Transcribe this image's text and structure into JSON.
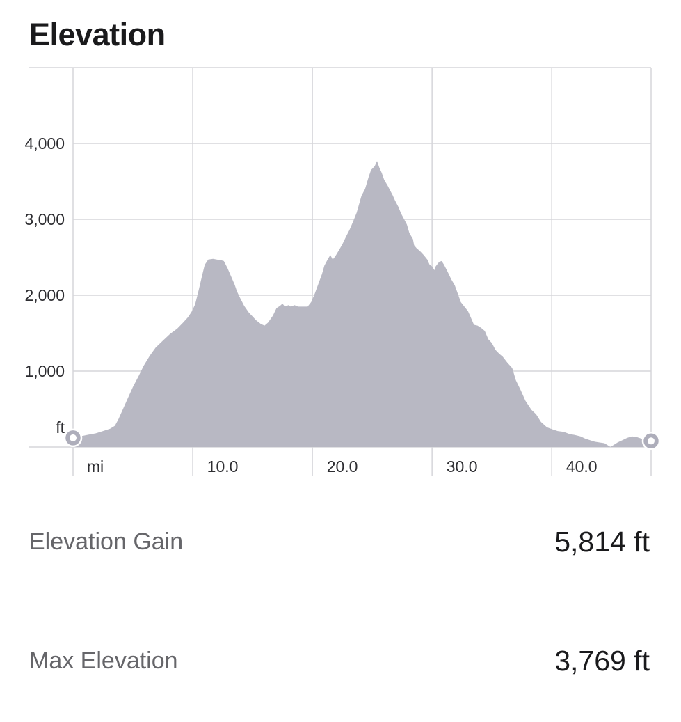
{
  "title": "Elevation",
  "chart_data": {
    "type": "area",
    "title": "Elevation",
    "grid": true,
    "fill_color": "#b8b8c3",
    "marker_color": "#aeaebb",
    "x_axis": {
      "unit_label": "mi",
      "range": [
        0,
        48.3
      ],
      "ticks": [
        {
          "value": 10,
          "label": "10.0"
        },
        {
          "value": 20,
          "label": "20.0"
        },
        {
          "value": 30,
          "label": "30.0"
        },
        {
          "value": 40,
          "label": "40.0"
        }
      ]
    },
    "y_axis": {
      "unit_label": "ft",
      "range": [
        0,
        5000
      ],
      "ticks": [
        {
          "value": 1000,
          "label": "1,000"
        },
        {
          "value": 2000,
          "label": "2,000"
        },
        {
          "value": 3000,
          "label": "3,000"
        },
        {
          "value": 4000,
          "label": "4,000"
        }
      ]
    },
    "series": [
      {
        "name": "elevation-profile",
        "points_mi_ft": [
          [
            0,
            120
          ],
          [
            0.6,
            140
          ],
          [
            1.2,
            160
          ],
          [
            1.9,
            180
          ],
          [
            2.5,
            210
          ],
          [
            3.1,
            240
          ],
          [
            3.5,
            280
          ],
          [
            3.8,
            370
          ],
          [
            4.2,
            510
          ],
          [
            4.6,
            650
          ],
          [
            5,
            790
          ],
          [
            5.5,
            940
          ],
          [
            5.9,
            1070
          ],
          [
            6.4,
            1200
          ],
          [
            6.9,
            1310
          ],
          [
            7.5,
            1400
          ],
          [
            8.1,
            1490
          ],
          [
            8.7,
            1560
          ],
          [
            9.2,
            1640
          ],
          [
            9.6,
            1710
          ],
          [
            9.9,
            1780
          ],
          [
            10.2,
            1880
          ],
          [
            10.5,
            2070
          ],
          [
            10.8,
            2270
          ],
          [
            11,
            2400
          ],
          [
            11.3,
            2470
          ],
          [
            11.7,
            2480
          ],
          [
            12,
            2470
          ],
          [
            12.4,
            2460
          ],
          [
            12.6,
            2450
          ],
          [
            12.9,
            2360
          ],
          [
            13.2,
            2250
          ],
          [
            13.5,
            2140
          ],
          [
            13.7,
            2050
          ],
          [
            14,
            1950
          ],
          [
            14.3,
            1860
          ],
          [
            14.7,
            1770
          ],
          [
            15,
            1720
          ],
          [
            15.3,
            1670
          ],
          [
            15.7,
            1620
          ],
          [
            16,
            1600
          ],
          [
            16.3,
            1640
          ],
          [
            16.7,
            1730
          ],
          [
            17,
            1830
          ],
          [
            17.3,
            1860
          ],
          [
            17.5,
            1890
          ],
          [
            17.7,
            1850
          ],
          [
            18,
            1870
          ],
          [
            18.2,
            1850
          ],
          [
            18.5,
            1870
          ],
          [
            18.8,
            1850
          ],
          [
            19.2,
            1850
          ],
          [
            19.6,
            1850
          ],
          [
            19.9,
            1910
          ],
          [
            20.2,
            2020
          ],
          [
            20.5,
            2150
          ],
          [
            20.8,
            2280
          ],
          [
            21,
            2390
          ],
          [
            21.3,
            2480
          ],
          [
            21.5,
            2530
          ],
          [
            21.7,
            2470
          ],
          [
            21.9,
            2510
          ],
          [
            22.2,
            2590
          ],
          [
            22.5,
            2670
          ],
          [
            22.8,
            2770
          ],
          [
            23.1,
            2860
          ],
          [
            23.4,
            2970
          ],
          [
            23.7,
            3090
          ],
          [
            23.9,
            3200
          ],
          [
            24.1,
            3310
          ],
          [
            24.4,
            3400
          ],
          [
            24.7,
            3560
          ],
          [
            24.9,
            3650
          ],
          [
            25.2,
            3700
          ],
          [
            25.4,
            3769
          ],
          [
            25.6,
            3680
          ],
          [
            25.8,
            3610
          ],
          [
            26,
            3520
          ],
          [
            26.3,
            3440
          ],
          [
            26.5,
            3380
          ],
          [
            26.7,
            3320
          ],
          [
            26.9,
            3250
          ],
          [
            27.2,
            3160
          ],
          [
            27.4,
            3080
          ],
          [
            27.6,
            3020
          ],
          [
            27.9,
            2930
          ],
          [
            28.1,
            2820
          ],
          [
            28.4,
            2740
          ],
          [
            28.5,
            2660
          ],
          [
            28.7,
            2620
          ],
          [
            29,
            2580
          ],
          [
            29.3,
            2530
          ],
          [
            29.6,
            2470
          ],
          [
            29.8,
            2400
          ],
          [
            30,
            2380
          ],
          [
            30.2,
            2330
          ],
          [
            30.3,
            2380
          ],
          [
            30.6,
            2440
          ],
          [
            30.8,
            2450
          ],
          [
            31,
            2400
          ],
          [
            31.3,
            2310
          ],
          [
            31.6,
            2210
          ],
          [
            31.9,
            2130
          ],
          [
            32.2,
            2000
          ],
          [
            32.4,
            1910
          ],
          [
            32.7,
            1850
          ],
          [
            33,
            1790
          ],
          [
            33.2,
            1720
          ],
          [
            33.5,
            1610
          ],
          [
            33.8,
            1600
          ],
          [
            34.1,
            1570
          ],
          [
            34.4,
            1530
          ],
          [
            34.7,
            1420
          ],
          [
            35,
            1370
          ],
          [
            35.3,
            1280
          ],
          [
            35.6,
            1230
          ],
          [
            35.9,
            1190
          ],
          [
            36.3,
            1110
          ],
          [
            36.7,
            1040
          ],
          [
            37,
            880
          ],
          [
            37.4,
            750
          ],
          [
            37.8,
            610
          ],
          [
            38.3,
            490
          ],
          [
            38.7,
            430
          ],
          [
            39.1,
            330
          ],
          [
            39.6,
            260
          ],
          [
            40.1,
            230
          ],
          [
            40.5,
            210
          ],
          [
            41,
            200
          ],
          [
            41.5,
            170
          ],
          [
            41.9,
            160
          ],
          [
            42.4,
            140
          ],
          [
            42.8,
            110
          ],
          [
            43.2,
            90
          ],
          [
            43.6,
            70
          ],
          [
            44,
            60
          ],
          [
            44.4,
            50
          ],
          [
            44.7,
            20
          ],
          [
            44.9,
            0
          ],
          [
            45.2,
            30
          ],
          [
            45.5,
            60
          ],
          [
            45.9,
            90
          ],
          [
            46.3,
            120
          ],
          [
            46.7,
            140
          ],
          [
            47.1,
            130
          ],
          [
            47.5,
            110
          ],
          [
            47.9,
            90
          ],
          [
            48.3,
            80
          ]
        ]
      }
    ]
  },
  "stats": [
    {
      "label": "Elevation Gain",
      "value": "5,814 ft"
    },
    {
      "label": "Max Elevation",
      "value": "3,769 ft"
    }
  ],
  "colors": {
    "area_fill": "#b8b8c3",
    "marker_ring": "#aeaebb",
    "gridline": "#d6d6da",
    "divider": "#e4e4e6",
    "text_dark": "#1a1a1c",
    "text_gray": "#66666a"
  }
}
